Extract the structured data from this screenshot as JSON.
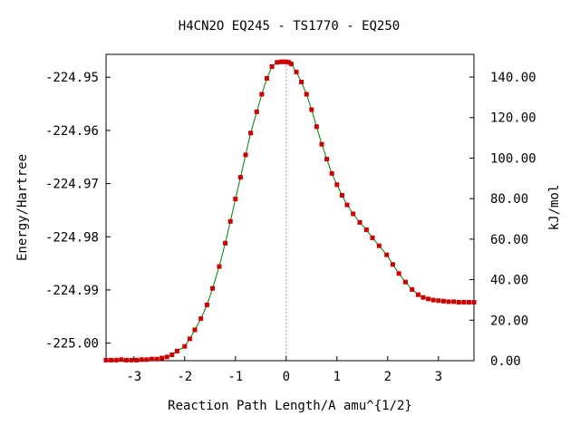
{
  "chart_data": {
    "type": "line",
    "title": "H4CN2O   EQ245 - TS1770 - EQ250",
    "xlabel": "Reaction Path Length/A amu^{1/2}",
    "ylabel": "Energy/Hartree",
    "y2label": "kJ/mol",
    "xlim": [
      -3.55,
      3.7
    ],
    "ylim": [
      -225.0033,
      -224.9457
    ],
    "y2lim": [
      0,
      151.2
    ],
    "x_ticks": [
      -3,
      -2,
      -1,
      0,
      1,
      2,
      3
    ],
    "x_tick_labels": [
      "-3",
      "-2",
      "-1",
      "0",
      "1",
      "2",
      "3"
    ],
    "y_ticks": [
      -224.95,
      -224.96,
      -224.97,
      -224.98,
      -224.99,
      -225.0
    ],
    "y_tick_labels": [
      "-224.95",
      "-224.96",
      "-224.97",
      "-224.98",
      "-224.99",
      "-225.00"
    ],
    "y2_ticks": [
      140,
      120,
      100,
      80,
      60,
      40,
      20,
      0
    ],
    "y2_tick_labels": [
      "140.00",
      "120.00",
      "100.00",
      "80.00",
      "60.00",
      "40.00",
      "20.00",
      "0.00"
    ],
    "ts_marker_x": 0,
    "grid": false,
    "colors": {
      "line": "#008000",
      "point": "#cc0000",
      "ts_line": "#999999"
    },
    "x": [
      -3.55,
      -3.45,
      -3.35,
      -3.25,
      -3.15,
      -3.05,
      -2.95,
      -2.85,
      -2.75,
      -2.65,
      -2.55,
      -2.45,
      -2.35,
      -2.25,
      -2.15,
      -2.0,
      -1.9,
      -1.8,
      -1.68,
      -1.56,
      -1.45,
      -1.32,
      -1.2,
      -1.1,
      -1.0,
      -0.9,
      -0.8,
      -0.7,
      -0.58,
      -0.48,
      -0.38,
      -0.28,
      -0.18,
      -0.1,
      -0.05,
      0.0,
      0.05,
      0.1,
      0.2,
      0.3,
      0.4,
      0.5,
      0.6,
      0.7,
      0.8,
      0.9,
      1.0,
      1.1,
      1.2,
      1.32,
      1.45,
      1.58,
      1.7,
      1.83,
      1.98,
      2.1,
      2.22,
      2.35,
      2.48,
      2.6,
      2.7,
      2.8,
      2.9,
      3.0,
      3.1,
      3.2,
      3.3,
      3.4,
      3.5,
      3.6,
      3.7
    ],
    "y": [
      -225.0032,
      -225.0032,
      -225.0032,
      -225.0031,
      -225.0032,
      -225.0032,
      -225.0032,
      -225.0031,
      -225.0031,
      -225.003,
      -225.003,
      -225.0028,
      -225.0026,
      -225.0022,
      -225.0015,
      -225.0006,
      -224.9992,
      -224.9975,
      -224.9954,
      -224.9928,
      -224.9897,
      -224.9856,
      -224.9812,
      -224.9771,
      -224.9729,
      -224.9688,
      -224.9646,
      -224.9605,
      -224.9565,
      -224.9532,
      -224.9502,
      -224.948,
      -224.9472,
      -224.9471,
      -224.9471,
      -224.9471,
      -224.9472,
      -224.9475,
      -224.949,
      -224.9509,
      -224.9532,
      -224.9561,
      -224.9593,
      -224.9626,
      -224.9654,
      -224.9681,
      -224.9702,
      -224.9722,
      -224.974,
      -224.9757,
      -224.9773,
      -224.9787,
      -224.9802,
      -224.9817,
      -224.9834,
      -224.9852,
      -224.9869,
      -224.9885,
      -224.9899,
      -224.9909,
      -224.9914,
      -224.9917,
      -224.9919,
      -224.992,
      -224.9921,
      -224.9922,
      -224.9922,
      -224.9923,
      -224.9923,
      -224.9923,
      -224.9923
    ]
  }
}
